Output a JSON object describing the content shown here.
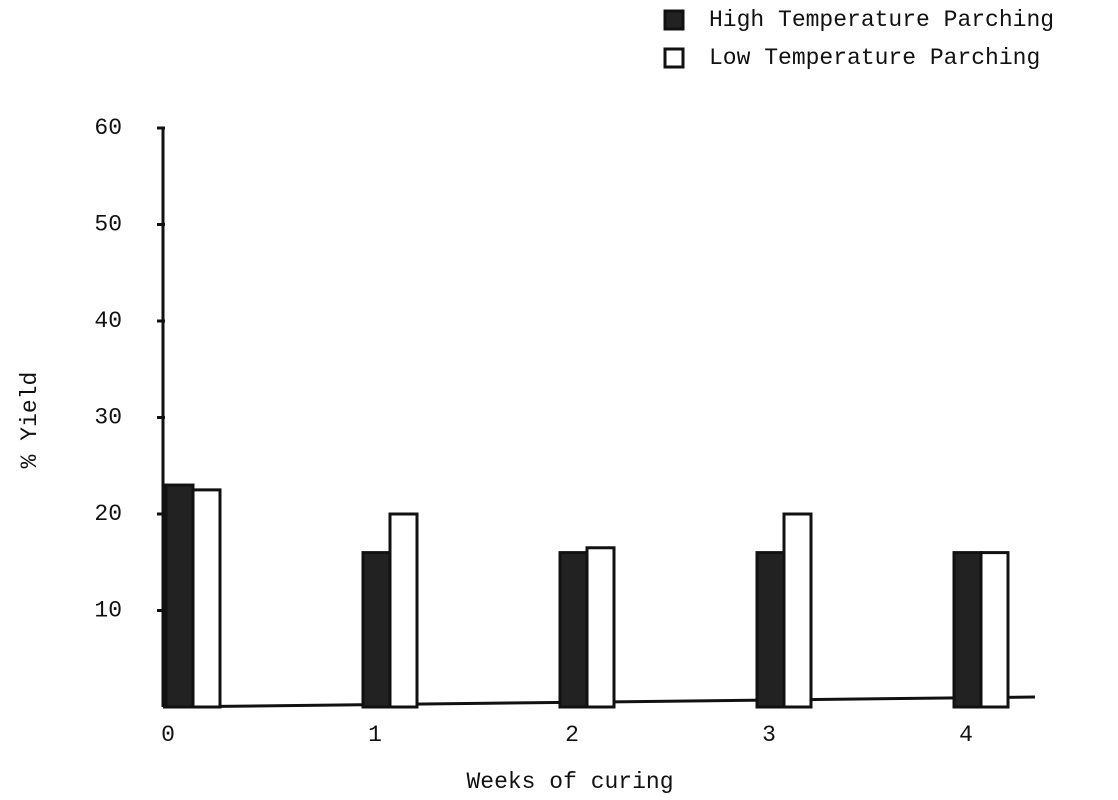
{
  "chart_data": {
    "type": "bar",
    "xlabel": "Weeks of curing",
    "ylabel": "% Yield",
    "categories": [
      "0",
      "1",
      "2",
      "3",
      "4"
    ],
    "series": [
      {
        "name": "High Temperature Parching",
        "color": "#222222",
        "values": [
          23,
          16,
          16,
          16,
          16
        ]
      },
      {
        "name": "Low Temperature Parching",
        "color": "#ffffff",
        "values": [
          22.5,
          20,
          16.5,
          20,
          16
        ]
      }
    ],
    "ylim": [
      0,
      60
    ],
    "yticks": [
      10,
      20,
      30,
      40,
      50,
      60
    ],
    "grid": false,
    "legend": "top-right"
  }
}
